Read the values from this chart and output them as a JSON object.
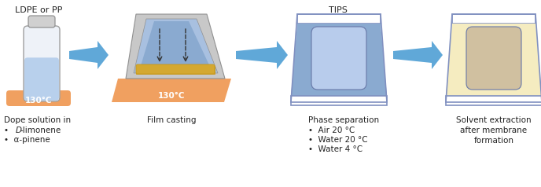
{
  "bg_color": "#ffffff",
  "title_ldpe": "LDPE or PP",
  "title_tips": "TIPS",
  "label1_title": "Dope solution in",
  "label1_bullet1_pre": "•  ",
  "label1_bullet1_italic": "D",
  "label1_bullet1_post": "-limonene",
  "label1_bullet2": "•  α-pinene",
  "label2": "Film casting",
  "label3_title": "Phase separation",
  "label3_bullets": [
    "•  Air 20 °C",
    "•  Water 20 °C",
    "•  Water 4 °C"
  ],
  "label4_lines": [
    "Solvent extraction",
    "after membrane",
    "formation"
  ],
  "orange_color": "#F0A060",
  "gray_light": "#C8C8C8",
  "gray_mid": "#909090",
  "gray_tray": "#B8B8B8",
  "blue_light": "#A8C0E0",
  "blue_fill": "#8AAAD0",
  "blue_dark": "#6688B8",
  "blue_inner": "#B8CCEC",
  "arrow_blue1": "#60A8D8",
  "arrow_blue2": "#A8D0F0",
  "yellow_light": "#F5ECC0",
  "beige_fill": "#D0C0A0",
  "beige_mid": "#C0B090",
  "gold_fill": "#C8981A",
  "gold_light": "#D4A830",
  "white": "#FFFFFF",
  "border_blue": "#8090C0",
  "border_blue_dark": "#6878A8",
  "text_color": "#222222",
  "bottle_cap_gray1": "#D0D0D0",
  "bottle_cap_gray2": "#888888",
  "bottle_blue": "#B8D0EC",
  "bottle_white": "#EEF2F8",
  "bottle_border": "#A0A0A0"
}
